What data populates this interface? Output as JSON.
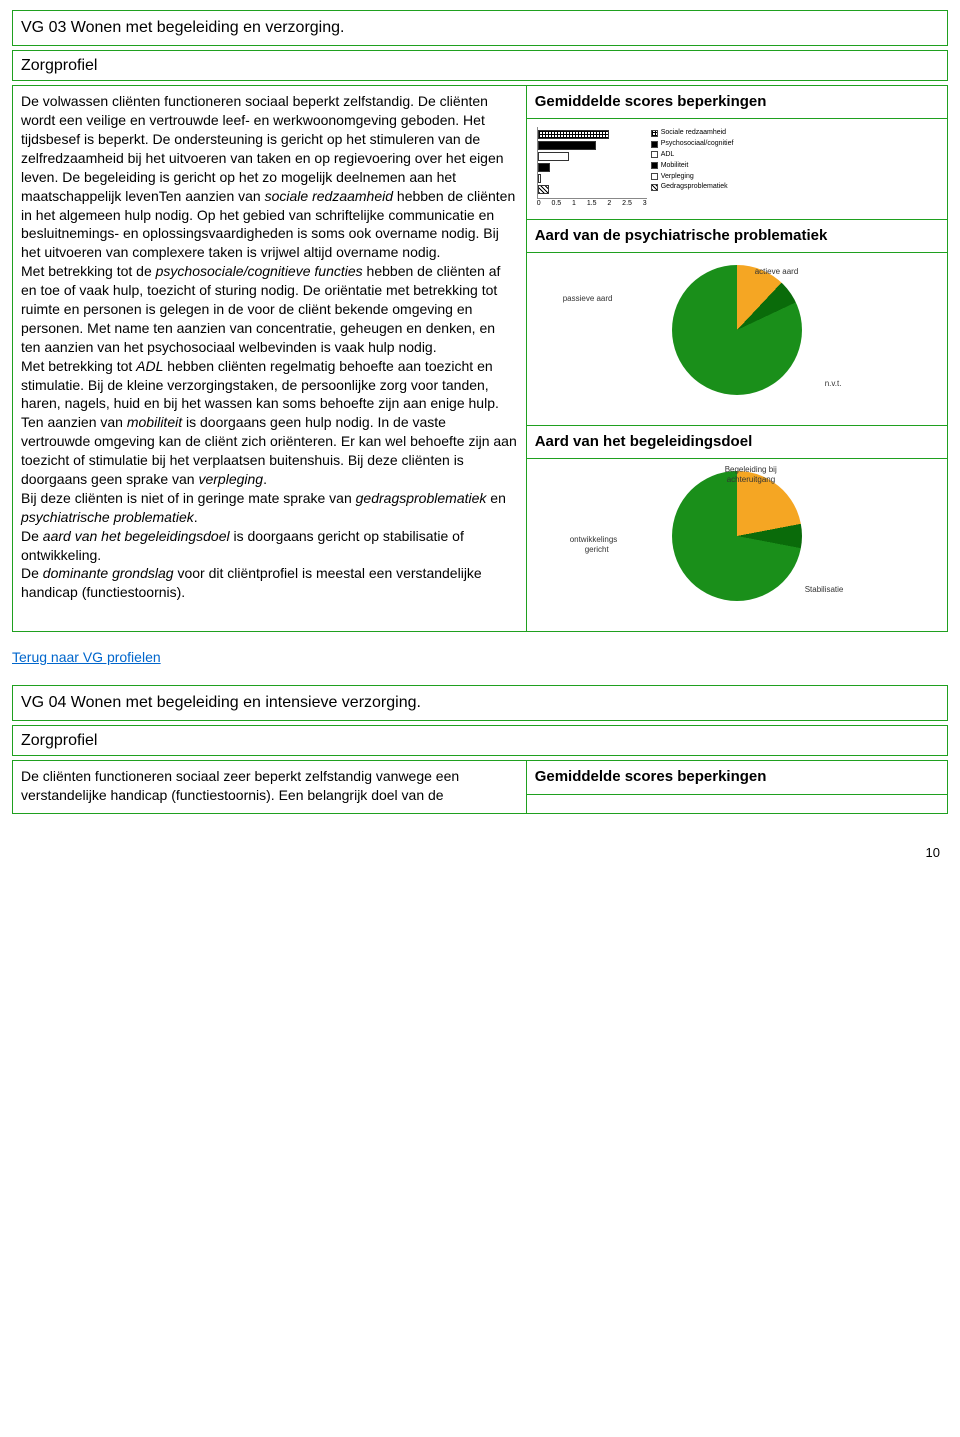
{
  "profile1": {
    "title": "VG 03 Wonen met begeleiding en verzorging.",
    "section_label": "Zorgprofiel",
    "body_segments": [
      {
        "t": "De volwassen cliënten functioneren sociaal beperkt zelfstandig. De cliënten wordt een veilige en vertrouwde leef- en werkwoonomgeving geboden. Het tijdsbesef is beperkt. De ondersteuning is gericht op het stimuleren van de zelfredzaamheid bij het uitvoeren van taken en op regievoering over het eigen leven. De begeleiding is gericht op het zo mogelijk deelnemen aan het maatschappelijk leven",
        "i": false
      },
      {
        "t": "Ten aanzien van ",
        "i": false
      },
      {
        "t": "sociale redzaamheid",
        "i": true
      },
      {
        "t": " hebben de cliënten in het algemeen hulp nodig. Op het gebied van schriftelijke communicatie en besluitnemings- en oplossingsvaardigheden is soms ook overname nodig. Bij het uitvoeren van complexere taken is vrijwel altijd overname nodig.",
        "i": false
      },
      {
        "br": true
      },
      {
        "t": "Met betrekking tot de ",
        "i": false
      },
      {
        "t": "psychosociale/cognitieve functies",
        "i": true
      },
      {
        "t": " hebben de cliënten af en toe of vaak hulp, toezicht of sturing nodig. De oriëntatie met betrekking tot ruimte en personen is gelegen in de voor de cliënt bekende omgeving en personen. Met name ten aanzien van concentratie, geheugen en denken, en ten aanzien van het psychosociaal welbevinden is vaak hulp nodig.",
        "i": false
      },
      {
        "br": true
      },
      {
        "t": "Met betrekking tot ",
        "i": false
      },
      {
        "t": "ADL",
        "i": true
      },
      {
        "t": " hebben cliënten regelmatig behoefte aan toezicht en stimulatie. Bij de kleine verzorgingstaken, de persoonlijke zorg voor tanden, haren, nagels, huid en bij het wassen kan soms behoefte zijn aan enige hulp.",
        "i": false
      },
      {
        "br": true
      },
      {
        "t": "Ten aanzien van ",
        "i": false
      },
      {
        "t": "mobiliteit",
        "i": true
      },
      {
        "t": " is doorgaans geen hulp nodig. In de vaste vertrouwde omgeving kan de cliënt zich oriënteren. Er kan wel behoefte zijn aan toezicht of stimulatie bij het verplaatsen buitenshuis. Bij deze cliënten is doorgaans geen sprake van ",
        "i": false
      },
      {
        "t": "verpleging",
        "i": true
      },
      {
        "t": ".",
        "i": false
      },
      {
        "br": true
      },
      {
        "t": "Bij deze cliënten is niet of in geringe mate sprake van ",
        "i": false
      },
      {
        "t": "gedragsproblematiek",
        "i": true
      },
      {
        "t": " en ",
        "i": false
      },
      {
        "t": "psychiatrische problematiek",
        "i": true
      },
      {
        "t": ".",
        "i": false
      },
      {
        "br": true
      },
      {
        "t": "De ",
        "i": false
      },
      {
        "t": "aard van het begeleidingsdoel",
        "i": true
      },
      {
        "t": " is doorgaans gericht op stabilisatie of ontwikkeling.",
        "i": false
      },
      {
        "br": true
      },
      {
        "t": "De ",
        "i": false
      },
      {
        "t": "dominante grondslag",
        "i": true
      },
      {
        "t": " voor dit cliëntprofiel is meestal een verstandelijke handicap (functiestoornis).",
        "i": false
      }
    ],
    "right": {
      "scores_title": "Gemiddelde scores beperkingen",
      "bar": {
        "max": 3,
        "ticks": [
          "0",
          "0.5",
          "1",
          "1.5",
          "2",
          "2.5",
          "3"
        ],
        "series": [
          {
            "label": "Sociale redzaamheid",
            "value": 1.95,
            "fill": "crosshatch"
          },
          {
            "label": "Psychosociaal/cognitief",
            "value": 1.6,
            "fill": "#000000"
          },
          {
            "label": "ADL",
            "value": 0.85,
            "fill": "#ffffff"
          },
          {
            "label": "Mobiliteit",
            "value": 0.35,
            "fill": "#000000"
          },
          {
            "label": "Verpleging",
            "value": 0.08,
            "fill": "#ffffff"
          },
          {
            "label": "Gedragsproblematiek",
            "value": 0.3,
            "fill": "diag"
          }
        ]
      },
      "pie1_title": "Aard van de psychiatrische problematiek",
      "pie1": {
        "slices": [
          {
            "label": "passieve aard",
            "value": 12,
            "color": "#f5a623"
          },
          {
            "label": "actieve aard",
            "value": 6,
            "color": "#0a6b0a"
          },
          {
            "label": "n.v.t.",
            "value": 82,
            "color": "#1a8f1a"
          }
        ]
      },
      "pie2_title": "Aard van het begeleidingsdoel",
      "pie2": {
        "slices": [
          {
            "label": "ontwikkelings gericht",
            "value": 22,
            "color": "#f5a623"
          },
          {
            "label": "Begeleiding bij achteruitgang",
            "value": 6,
            "color": "#0a6b0a"
          },
          {
            "label": "Stabilisatie",
            "value": 72,
            "color": "#1a8f1a"
          }
        ]
      }
    }
  },
  "back_link": "Terug naar VG profielen",
  "profile2": {
    "title": "VG 04 Wonen met begeleiding en intensieve verzorging.",
    "section_label": "Zorgprofiel",
    "body_start": "De cliënten functioneren sociaal zeer beperkt zelfstandig vanwege een verstandelijke handicap (functiestoornis). Een belangrijk doel van de",
    "right_title": "Gemiddelde scores beperkingen"
  },
  "page_number": "10",
  "colors": {
    "border": "#1fa01f",
    "link": "#0066cc"
  }
}
